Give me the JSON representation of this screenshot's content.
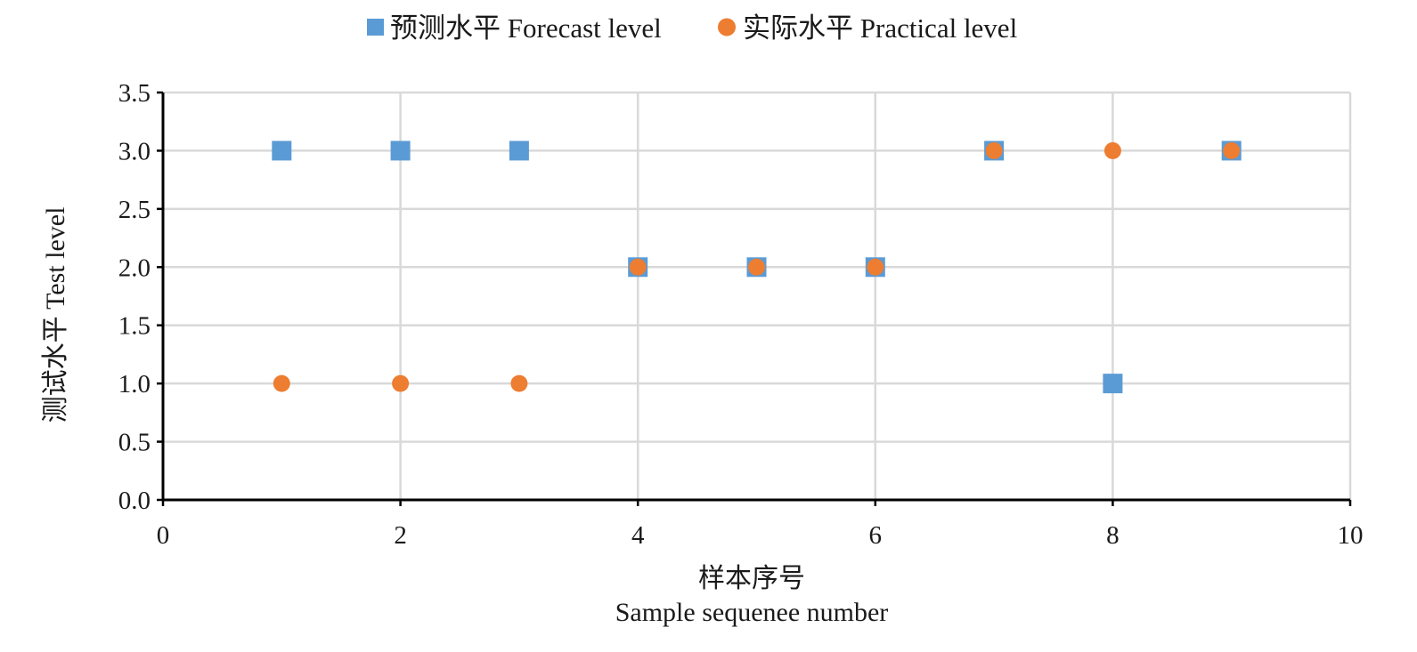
{
  "chart_data": {
    "type": "scatter",
    "title": "",
    "xlabel": "样本序号",
    "xlabel_en": "Sample sequenee number",
    "ylabel": "测试水平 Test level",
    "xlim": [
      0,
      10
    ],
    "ylim": [
      0,
      3.5
    ],
    "x_ticks": [
      "0",
      "2",
      "4",
      "6",
      "8",
      "10"
    ],
    "y_ticks": [
      "0.0",
      "0.5",
      "1.0",
      "1.5",
      "2.0",
      "2.5",
      "3.0",
      "3.5"
    ],
    "grid": true,
    "legend_position": "top-center",
    "series": [
      {
        "name": "预测水平 Forecast level",
        "marker": "square",
        "color": "#5B9BD5",
        "x": [
          1,
          2,
          3,
          4,
          5,
          6,
          7,
          8,
          9
        ],
        "y": [
          3,
          3,
          3,
          2,
          2,
          2,
          3,
          1,
          3
        ]
      },
      {
        "name": "实际水平 Practical level",
        "marker": "circle",
        "color": "#ED7D31",
        "x": [
          1,
          2,
          3,
          4,
          5,
          6,
          7,
          8,
          9
        ],
        "y": [
          1,
          1,
          1,
          2,
          2,
          2,
          3,
          3,
          3
        ]
      }
    ]
  }
}
